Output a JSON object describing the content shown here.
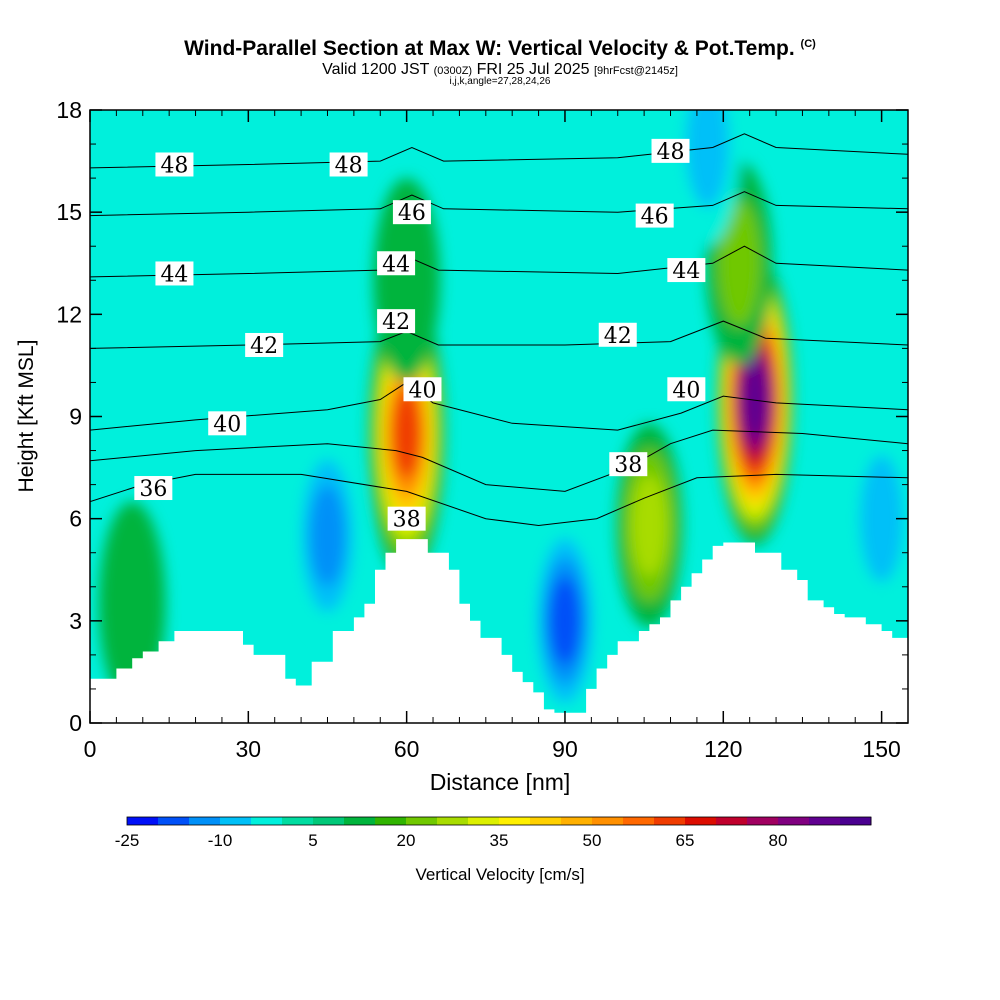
{
  "header": {
    "title": "Wind-Parallel Section at Max W: Vertical Velocity & Pot.Temp.",
    "copyright": "(C)",
    "valid_pre": "Valid 1200 JST",
    "valid_utc": "(0300Z)",
    "valid_post": "FRI 25 Jul 2025",
    "fcst": "[9hrFcst@2145z]",
    "ijk": "i,j,k,angle=27,28,24,26"
  },
  "chart_data": {
    "type": "heatmap",
    "xlabel": "Distance [nm]",
    "ylabel": "Height [Kft MSL]",
    "xlim": [
      0,
      155
    ],
    "ylim": [
      0,
      18
    ],
    "x_ticks": [
      "0",
      "30",
      "60",
      "90",
      "120",
      "150"
    ],
    "y_ticks": [
      "0",
      "3",
      "6",
      "9",
      "12",
      "15",
      "18"
    ],
    "background_color": "#00f0dc",
    "field": {
      "name": "Vertical Velocity",
      "units": "cm/s",
      "features": [
        {
          "x": 60,
          "y": 8.5,
          "value": 60
        },
        {
          "x": 60,
          "y": 13,
          "value": 10
        },
        {
          "x": 126,
          "y": 9.5,
          "value": 85
        },
        {
          "x": 123,
          "y": 13.5,
          "value": 20
        },
        {
          "x": 106,
          "y": 5.8,
          "value": 25
        },
        {
          "x": 8,
          "y": 3.5,
          "value": 12
        },
        {
          "x": 45,
          "y": 5.5,
          "value": -15
        },
        {
          "x": 90,
          "y": 3,
          "value": -18
        },
        {
          "x": 117,
          "y": 17,
          "value": -10
        },
        {
          "x": 150,
          "y": 6,
          "value": -8
        }
      ]
    },
    "terrain": [
      [
        0,
        1.3
      ],
      [
        5,
        1.6
      ],
      [
        8,
        1.9
      ],
      [
        10,
        2.1
      ],
      [
        13,
        2.4
      ],
      [
        16,
        2.7
      ],
      [
        26,
        2.7
      ],
      [
        29,
        2.3
      ],
      [
        31,
        2
      ],
      [
        36,
        2
      ],
      [
        37,
        1.3
      ],
      [
        39,
        1.1
      ],
      [
        41,
        1.1
      ],
      [
        42,
        1.8
      ],
      [
        45,
        1.8
      ],
      [
        46,
        2.7
      ],
      [
        48,
        2.7
      ],
      [
        50,
        3.1
      ],
      [
        52,
        3.5
      ],
      [
        54,
        4.5
      ],
      [
        56,
        5
      ],
      [
        58,
        5.4
      ],
      [
        62,
        5.4
      ],
      [
        64,
        5
      ],
      [
        68,
        4.5
      ],
      [
        70,
        3.5
      ],
      [
        72,
        3
      ],
      [
        74,
        2.5
      ],
      [
        76,
        2.5
      ],
      [
        78,
        2
      ],
      [
        80,
        1.5
      ],
      [
        82,
        1.2
      ],
      [
        84,
        0.9
      ],
      [
        86,
        0.4
      ],
      [
        88,
        0.3
      ],
      [
        92,
        0.3
      ],
      [
        94,
        1
      ],
      [
        96,
        1.6
      ],
      [
        98,
        2
      ],
      [
        100,
        2.4
      ],
      [
        104,
        2.7
      ],
      [
        106,
        2.9
      ],
      [
        108,
        3.1
      ],
      [
        110,
        3.6
      ],
      [
        112,
        4
      ],
      [
        114,
        4.4
      ],
      [
        116,
        4.8
      ],
      [
        118,
        5.2
      ],
      [
        120,
        5.3
      ],
      [
        125,
        5.3
      ],
      [
        126,
        5
      ],
      [
        130,
        5
      ],
      [
        131,
        4.5
      ],
      [
        134,
        4.2
      ],
      [
        136,
        3.6
      ],
      [
        139,
        3.4
      ],
      [
        141,
        3.2
      ],
      [
        143,
        3.1
      ],
      [
        147,
        2.9
      ],
      [
        150,
        2.7
      ],
      [
        152,
        2.5
      ],
      [
        155,
        2.3
      ]
    ],
    "isentropes": [
      {
        "label": "36",
        "label_at": [
          12,
          6.9
        ],
        "points": [
          [
            0,
            6.5
          ],
          [
            10,
            7
          ],
          [
            20,
            7.3
          ],
          [
            40,
            7.3
          ],
          [
            60,
            6.8
          ],
          [
            75,
            6
          ],
          [
            85,
            5.8
          ],
          [
            96,
            6
          ],
          [
            105,
            6.6
          ],
          [
            115,
            7.2
          ],
          [
            130,
            7.3
          ],
          [
            155,
            7.2
          ]
        ]
      },
      {
        "label": "38",
        "label_at": [
          60,
          6
        ],
        "points": [
          [
            0,
            7.7
          ],
          [
            20,
            8
          ],
          [
            45,
            8.2
          ],
          [
            58,
            8
          ],
          [
            63,
            7.8
          ],
          [
            75,
            7
          ],
          [
            90,
            6.8
          ],
          [
            102,
            7.5
          ],
          [
            110,
            8.2
          ],
          [
            118,
            8.6
          ],
          [
            135,
            8.5
          ],
          [
            155,
            8.2
          ]
        ]
      },
      {
        "label": "38",
        "label_at": [
          102,
          7.6
        ],
        "points": [
          [
            0,
            7.7
          ],
          [
            20,
            8
          ],
          [
            45,
            8.2
          ],
          [
            58,
            8
          ],
          [
            63,
            7.8
          ],
          [
            75,
            7
          ],
          [
            90,
            6.8
          ],
          [
            102,
            7.5
          ],
          [
            110,
            8.2
          ],
          [
            118,
            8.6
          ],
          [
            135,
            8.5
          ],
          [
            155,
            8.2
          ]
        ]
      },
      {
        "label": "40",
        "label_at": [
          26,
          8.8
        ],
        "points": [
          [
            0,
            8.6
          ],
          [
            20,
            8.9
          ],
          [
            45,
            9.2
          ],
          [
            55,
            9.5
          ],
          [
            60,
            10
          ],
          [
            65,
            9.4
          ],
          [
            80,
            8.8
          ],
          [
            100,
            8.6
          ],
          [
            112,
            9.1
          ],
          [
            120,
            9.6
          ],
          [
            130,
            9.4
          ],
          [
            155,
            9.2
          ]
        ]
      },
      {
        "label": "40",
        "label_at": [
          63,
          9.8
        ],
        "points": [
          [
            0,
            8.6
          ],
          [
            20,
            8.9
          ],
          [
            45,
            9.2
          ],
          [
            55,
            9.5
          ],
          [
            60,
            10
          ],
          [
            65,
            9.4
          ],
          [
            80,
            8.8
          ],
          [
            100,
            8.6
          ],
          [
            112,
            9.1
          ],
          [
            120,
            9.6
          ],
          [
            130,
            9.4
          ],
          [
            155,
            9.2
          ]
        ]
      },
      {
        "label": "40",
        "label_at": [
          113,
          9.8
        ],
        "points": [
          [
            0,
            8.6
          ],
          [
            20,
            8.9
          ],
          [
            45,
            9.2
          ],
          [
            55,
            9.5
          ],
          [
            60,
            10
          ],
          [
            65,
            9.4
          ],
          [
            80,
            8.8
          ],
          [
            100,
            8.6
          ],
          [
            112,
            9.1
          ],
          [
            120,
            9.6
          ],
          [
            130,
            9.4
          ],
          [
            155,
            9.2
          ]
        ]
      },
      {
        "label": "42",
        "label_at": [
          33,
          11.1
        ],
        "points": [
          [
            0,
            11
          ],
          [
            30,
            11.1
          ],
          [
            55,
            11.2
          ],
          [
            60,
            11.5
          ],
          [
            66,
            11.1
          ],
          [
            90,
            11.1
          ],
          [
            110,
            11.2
          ],
          [
            120,
            11.8
          ],
          [
            128,
            11.3
          ],
          [
            155,
            11.1
          ]
        ]
      },
      {
        "label": "42",
        "label_at": [
          58,
          11.8
        ],
        "points": [
          [
            0,
            11
          ],
          [
            30,
            11.1
          ],
          [
            55,
            11.2
          ],
          [
            60,
            11.5
          ],
          [
            66,
            11.1
          ],
          [
            90,
            11.1
          ],
          [
            110,
            11.2
          ],
          [
            120,
            11.8
          ],
          [
            128,
            11.3
          ],
          [
            155,
            11.1
          ]
        ]
      },
      {
        "label": "42",
        "label_at": [
          100,
          11.4
        ],
        "points": [
          [
            0,
            11
          ],
          [
            30,
            11.1
          ],
          [
            55,
            11.2
          ],
          [
            60,
            11.5
          ],
          [
            66,
            11.1
          ],
          [
            90,
            11.1
          ],
          [
            110,
            11.2
          ],
          [
            120,
            11.8
          ],
          [
            128,
            11.3
          ],
          [
            155,
            11.1
          ]
        ]
      },
      {
        "label": "44",
        "label_at": [
          16,
          13.2
        ],
        "points": [
          [
            0,
            13.1
          ],
          [
            30,
            13.2
          ],
          [
            55,
            13.3
          ],
          [
            60,
            13.7
          ],
          [
            66,
            13.3
          ],
          [
            100,
            13.2
          ],
          [
            118,
            13.5
          ],
          [
            124,
            14
          ],
          [
            130,
            13.5
          ],
          [
            155,
            13.3
          ]
        ]
      },
      {
        "label": "44",
        "label_at": [
          58,
          13.5
        ],
        "points": [
          [
            0,
            13.1
          ],
          [
            30,
            13.2
          ],
          [
            55,
            13.3
          ],
          [
            60,
            13.7
          ],
          [
            66,
            13.3
          ],
          [
            100,
            13.2
          ],
          [
            118,
            13.5
          ],
          [
            124,
            14
          ],
          [
            130,
            13.5
          ],
          [
            155,
            13.3
          ]
        ]
      },
      {
        "label": "44",
        "label_at": [
          113,
          13.3
        ],
        "points": [
          [
            0,
            13.1
          ],
          [
            30,
            13.2
          ],
          [
            55,
            13.3
          ],
          [
            60,
            13.7
          ],
          [
            66,
            13.3
          ],
          [
            100,
            13.2
          ],
          [
            118,
            13.5
          ],
          [
            124,
            14
          ],
          [
            130,
            13.5
          ],
          [
            155,
            13.3
          ]
        ]
      },
      {
        "label": "46",
        "label_at": [
          61,
          15
        ],
        "points": [
          [
            0,
            14.9
          ],
          [
            30,
            15
          ],
          [
            55,
            15.1
          ],
          [
            61,
            15.5
          ],
          [
            67,
            15.1
          ],
          [
            100,
            15
          ],
          [
            118,
            15.2
          ],
          [
            124,
            15.6
          ],
          [
            130,
            15.2
          ],
          [
            155,
            15.1
          ]
        ]
      },
      {
        "label": "46",
        "label_at": [
          107,
          14.9
        ],
        "points": [
          [
            0,
            14.9
          ],
          [
            30,
            15
          ],
          [
            55,
            15.1
          ],
          [
            61,
            15.5
          ],
          [
            67,
            15.1
          ],
          [
            100,
            15
          ],
          [
            118,
            15.2
          ],
          [
            124,
            15.6
          ],
          [
            130,
            15.2
          ],
          [
            155,
            15.1
          ]
        ]
      },
      {
        "label": "48",
        "label_at": [
          16,
          16.4
        ],
        "points": [
          [
            0,
            16.3
          ],
          [
            30,
            16.4
          ],
          [
            55,
            16.5
          ],
          [
            61,
            16.9
          ],
          [
            67,
            16.5
          ],
          [
            100,
            16.6
          ],
          [
            118,
            16.9
          ],
          [
            124,
            17.3
          ],
          [
            130,
            16.9
          ],
          [
            155,
            16.7
          ]
        ]
      },
      {
        "label": "48",
        "label_at": [
          49,
          16.4
        ],
        "points": [
          [
            0,
            16.3
          ],
          [
            30,
            16.4
          ],
          [
            55,
            16.5
          ],
          [
            61,
            16.9
          ],
          [
            67,
            16.5
          ],
          [
            100,
            16.6
          ],
          [
            118,
            16.9
          ],
          [
            124,
            17.3
          ],
          [
            130,
            16.9
          ],
          [
            155,
            16.7
          ]
        ]
      },
      {
        "label": "48",
        "label_at": [
          110,
          16.8
        ],
        "points": [
          [
            0,
            16.3
          ],
          [
            30,
            16.4
          ],
          [
            55,
            16.5
          ],
          [
            61,
            16.9
          ],
          [
            67,
            16.5
          ],
          [
            100,
            16.6
          ],
          [
            118,
            16.9
          ],
          [
            124,
            17.3
          ],
          [
            130,
            16.9
          ],
          [
            155,
            16.7
          ]
        ]
      }
    ],
    "colorbar": {
      "label": "Vertical Velocity [cm/s]",
      "range": [
        -25,
        95
      ],
      "step": 5,
      "tick_labels": [
        "-25",
        "-10",
        "5",
        "20",
        "35",
        "50",
        "65",
        "80"
      ],
      "colors": [
        "#0010f8",
        "#0050f8",
        "#0090f8",
        "#00c0f8",
        "#00f0dc",
        "#00dca0",
        "#00c878",
        "#00b43c",
        "#30b400",
        "#70c800",
        "#a8dc00",
        "#dcf000",
        "#fff000",
        "#ffd000",
        "#ffb000",
        "#ff9000",
        "#ff6800",
        "#f03c00",
        "#dc0c00",
        "#c0002c",
        "#a00060",
        "#800080",
        "#600090",
        "#4a0090"
      ]
    }
  }
}
